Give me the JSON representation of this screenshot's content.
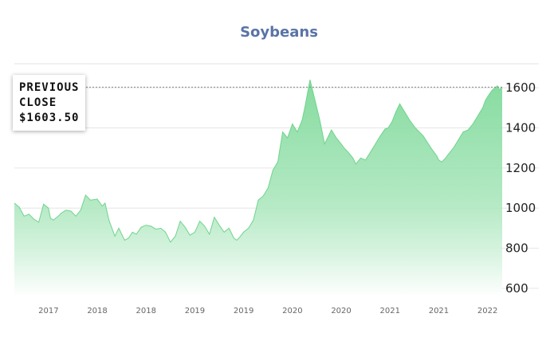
{
  "chart_data": {
    "type": "area",
    "title": "Soybeans",
    "xlabel": "",
    "ylabel": "",
    "ylim": [
      560,
      1720
    ],
    "yticks": [
      600,
      800,
      1000,
      1200,
      1400,
      1600
    ],
    "x_tick_labels": [
      "2017",
      "2018",
      "2018",
      "2019",
      "2019",
      "2020",
      "2020",
      "2021",
      "2021",
      "2022"
    ],
    "x_tick_positions": [
      2017.0,
      2017.5,
      2018.0,
      2018.5,
      2019.0,
      2019.5,
      2020.0,
      2020.5,
      2021.0,
      2021.5
    ],
    "xlim": [
      2016.65,
      2021.65
    ],
    "grid": true,
    "color": "#7ed99a",
    "reference_line": {
      "value": 1603.5,
      "style": "dotted"
    },
    "series": [
      {
        "x": [
          2016.65,
          2016.7,
          2016.75,
          2016.8,
          2016.85,
          2016.9,
          2016.95,
          2017.0,
          2017.02,
          2017.05,
          2017.1,
          2017.13,
          2017.18,
          2017.23,
          2017.28,
          2017.33,
          2017.38,
          2017.43,
          2017.5,
          2017.55,
          2017.58,
          2017.62,
          2017.68,
          2017.72,
          2017.78,
          2017.82,
          2017.86,
          2017.9,
          2017.95,
          2018.0,
          2018.05,
          2018.1,
          2018.15,
          2018.2,
          2018.25,
          2018.3,
          2018.35,
          2018.4,
          2018.45,
          2018.5,
          2018.55,
          2018.6,
          2018.65,
          2018.7,
          2018.75,
          2018.8,
          2018.85,
          2018.9,
          2018.93,
          2018.96,
          2019.0,
          2019.05,
          2019.1,
          2019.15,
          2019.2,
          2019.25,
          2019.3,
          2019.35,
          2019.4,
          2019.45,
          2019.5,
          2019.55,
          2019.6,
          2019.63,
          2019.68,
          2019.72,
          2019.78,
          2019.83,
          2019.9,
          2019.95,
          2020.0,
          2020.03,
          2020.07,
          2020.12,
          2020.15,
          2020.2,
          2020.25,
          2020.3,
          2020.35,
          2020.4,
          2020.45,
          2020.48,
          2020.52,
          2020.56,
          2020.6,
          2020.65,
          2020.7,
          2020.73,
          2020.76,
          2020.8,
          2020.84,
          2020.88,
          2020.92,
          2020.95,
          2020.98,
          2021.0,
          2021.03,
          2021.07,
          2021.1,
          2021.15,
          2021.2,
          2021.25,
          2021.3,
          2021.35,
          2021.4,
          2021.45,
          2021.48,
          2021.52,
          2021.55,
          2021.58,
          2021.6,
          2021.62,
          2021.65
        ],
        "y": [
          1025,
          1005,
          960,
          970,
          945,
          930,
          1020,
          1000,
          950,
          940,
          960,
          975,
          990,
          985,
          960,
          990,
          1065,
          1040,
          1045,
          1010,
          1025,
          940,
          860,
          900,
          840,
          850,
          880,
          870,
          905,
          915,
          910,
          895,
          900,
          880,
          830,
          860,
          935,
          905,
          865,
          880,
          935,
          910,
          870,
          955,
          915,
          880,
          900,
          850,
          840,
          855,
          880,
          900,
          940,
          1040,
          1060,
          1100,
          1190,
          1230,
          1380,
          1350,
          1420,
          1380,
          1440,
          1510,
          1640,
          1560,
          1440,
          1320,
          1390,
          1350,
          1320,
          1300,
          1280,
          1250,
          1220,
          1250,
          1240,
          1280,
          1320,
          1360,
          1395,
          1400,
          1430,
          1480,
          1520,
          1480,
          1440,
          1420,
          1400,
          1380,
          1360,
          1330,
          1300,
          1280,
          1260,
          1240,
          1230,
          1250,
          1270,
          1300,
          1340,
          1380,
          1390,
          1420,
          1460,
          1500,
          1540,
          1570,
          1590,
          1600,
          1610,
          1590,
          1603.5
        ]
      }
    ]
  },
  "callout": {
    "line1": "PREVIOUS",
    "line2": "CLOSE",
    "value": "$1603.50"
  }
}
